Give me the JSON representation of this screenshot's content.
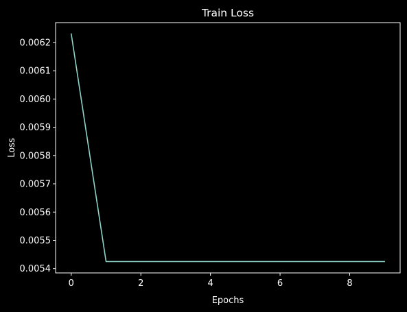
{
  "chart_data": {
    "type": "line",
    "title": "Train Loss",
    "xlabel": "Epochs",
    "ylabel": "Loss",
    "x": [
      0,
      1,
      2,
      3,
      4,
      5,
      6,
      7,
      8,
      9
    ],
    "series": [
      {
        "values": [
          0.00623,
          0.005425,
          0.005425,
          0.005425,
          0.005425,
          0.005425,
          0.005425,
          0.005425,
          0.005425,
          0.005425
        ],
        "color": "#8dd3c7"
      }
    ],
    "xlim": [
      -0.45,
      9.45
    ],
    "ylim": [
      0.00538475,
      0.00627025
    ],
    "xticks": [
      0,
      2,
      4,
      6,
      8
    ],
    "xtick_labels": [
      "0",
      "2",
      "4",
      "6",
      "8"
    ],
    "yticks": [
      0.0054,
      0.0055,
      0.0056,
      0.0057,
      0.0058,
      0.0059,
      0.006,
      0.0061,
      0.0062
    ],
    "ytick_labels": [
      "0.0054",
      "0.0055",
      "0.0056",
      "0.0057",
      "0.0058",
      "0.0059",
      "0.0060",
      "0.0061",
      "0.0062"
    ],
    "grid": false,
    "legend": "none",
    "colors": {
      "background": "#000000",
      "axes": "#ffffff",
      "text": "#ffffff"
    }
  }
}
